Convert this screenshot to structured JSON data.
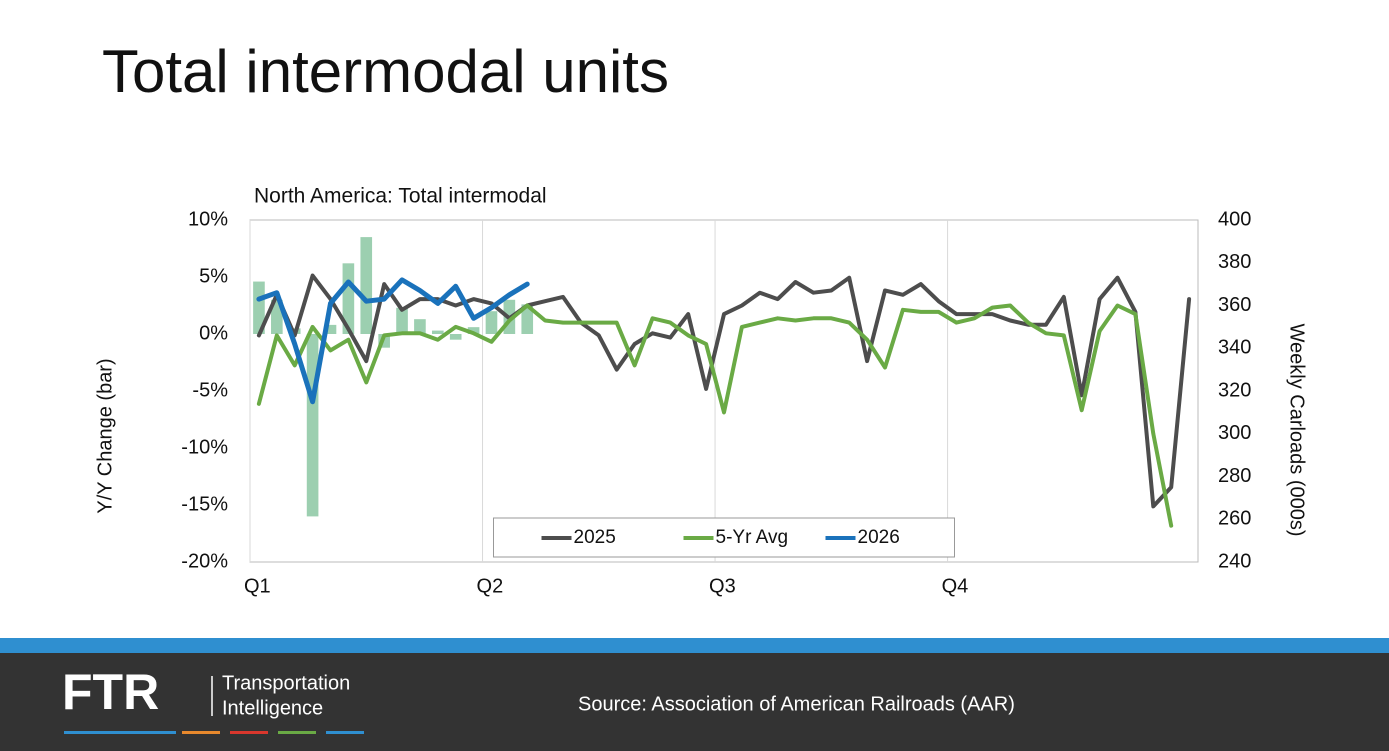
{
  "title": "Total intermodal units",
  "source": "Source: Association of American Railroads (AAR)",
  "logo": {
    "mark": "FTR",
    "line1": "Transportation",
    "line2": "Intelligence"
  },
  "chart_data": {
    "type": "combo",
    "title": "North America: Total intermodal",
    "y_label": "Y/Y Change (bar)",
    "y2_label": "Weekly Carloads (000s)",
    "legend": "lower center",
    "grid": "x",
    "x": [
      1,
      2,
      3,
      4,
      5,
      6,
      7,
      8,
      9,
      10,
      11,
      12,
      13,
      14,
      15,
      16,
      17,
      18,
      19,
      20,
      21,
      22,
      23,
      24,
      25,
      26,
      27,
      28,
      29,
      30,
      31,
      32,
      33,
      34,
      35,
      36,
      37,
      38,
      39,
      40,
      41,
      42,
      43,
      44,
      45,
      46,
      47,
      48,
      49,
      50,
      51,
      52,
      53
    ],
    "xlim": [
      0.5,
      53.5
    ],
    "xticks": [
      {
        "value": 0.5,
        "label": "Q1"
      },
      {
        "value": 13.5,
        "label": "Q2"
      },
      {
        "value": 26.5,
        "label": "Q3"
      },
      {
        "value": 39.5,
        "label": "Q4"
      }
    ],
    "ylim": [
      -20,
      10
    ],
    "yticks": [
      {
        "value": 10,
        "label": "10%"
      },
      {
        "value": 5,
        "label": "5%"
      },
      {
        "value": 0,
        "label": "0%"
      },
      {
        "value": -5,
        "label": "-5%"
      },
      {
        "value": -10,
        "label": "-10%"
      },
      {
        "value": -15,
        "label": "-15%"
      },
      {
        "value": -20,
        "label": "-20%"
      }
    ],
    "y2lim": [
      240,
      400
    ],
    "y2ticks": [
      400,
      380,
      360,
      340,
      320,
      300,
      280,
      260,
      240
    ],
    "bars": {
      "color": "#9ccfb0",
      "values": [
        4.6,
        3.0,
        0.5,
        -16,
        0.8,
        6.2,
        8.5,
        -1.2,
        2.3,
        1.3,
        0.3,
        -0.5,
        0.6,
        2.0,
        3.0,
        2.6,
        null,
        null,
        null,
        null,
        null,
        null,
        null,
        null,
        null,
        null,
        null,
        null,
        null,
        null,
        null,
        null,
        null,
        null,
        null,
        null,
        null,
        null,
        null,
        null,
        null,
        null,
        null,
        null,
        null,
        null,
        null,
        null,
        null,
        null,
        null,
        null,
        null
      ]
    },
    "series": [
      {
        "name": "2025",
        "color": "#4d4d4d",
        "axis": "y2",
        "values": [
          346,
          365,
          346,
          374,
          363,
          349,
          334,
          370,
          358,
          363,
          363,
          360,
          363,
          361,
          354,
          360,
          362,
          364,
          352,
          346,
          330,
          342,
          347,
          345,
          356,
          321,
          356,
          360,
          366,
          363,
          371,
          366,
          367,
          373,
          334,
          367,
          365,
          370,
          362,
          356,
          356,
          356,
          353,
          351,
          351,
          364,
          318,
          363,
          373,
          357,
          266,
          275,
          363
        ]
      },
      {
        "name": "5-Yr Avg",
        "color": "#6aaa45",
        "axis": "y2",
        "values": [
          314,
          346,
          332,
          350,
          339,
          344,
          324,
          346,
          347,
          347,
          344,
          350,
          347,
          343,
          353,
          360,
          353,
          352,
          352,
          352,
          352,
          332,
          354,
          352,
          346,
          342,
          310,
          350,
          352,
          354,
          353,
          354,
          354,
          352,
          344,
          331,
          358,
          357,
          357,
          352,
          354,
          359,
          360,
          352,
          347,
          346,
          311,
          348,
          360,
          356,
          300,
          257,
          null
        ]
      },
      {
        "name": "2026",
        "color": "#1a72bb",
        "axis": "y2",
        "values": [
          363,
          366,
          342,
          315,
          361,
          371,
          362,
          363,
          372,
          367,
          361,
          369,
          354,
          359,
          365,
          370,
          null,
          null,
          null,
          null,
          null,
          null,
          null,
          null,
          null,
          null,
          null,
          null,
          null,
          null,
          null,
          null,
          null,
          null,
          null,
          null,
          null,
          null,
          null,
          null,
          null,
          null,
          null,
          null,
          null,
          null,
          null,
          null,
          null,
          null,
          null,
          null,
          null
        ]
      }
    ]
  }
}
